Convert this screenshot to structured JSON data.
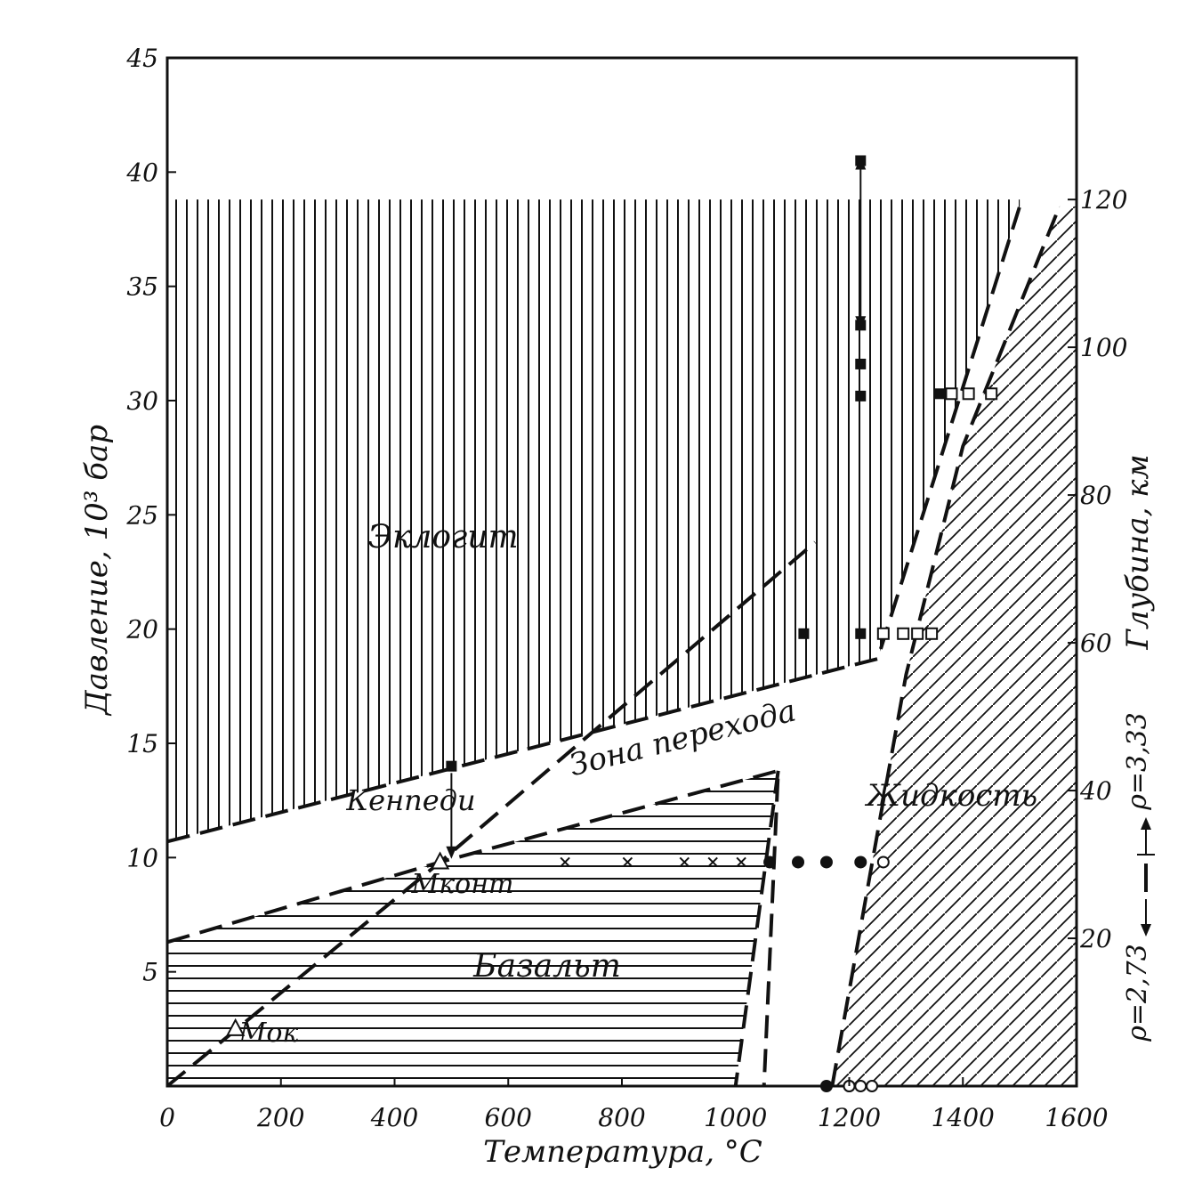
{
  "chart_data": {
    "type": "scatter",
    "title": "",
    "xlabel": "Температура, °С",
    "ylabel": "Давление, 10³ бар",
    "ylabel_right": "Глубина, км",
    "xlim": [
      0,
      1600
    ],
    "ylim": [
      0,
      45
    ],
    "xticks": [
      "0",
      "200",
      "400",
      "600",
      "800",
      "1000",
      "1200",
      "1400",
      "1600"
    ],
    "yticks": [
      "5",
      "10",
      "15",
      "20",
      "25",
      "30",
      "35",
      "40",
      "45"
    ],
    "right_ticks": [
      "20",
      "40",
      "60",
      "80",
      "100",
      "120"
    ],
    "density_note": {
      "lower": "ρ=2,73",
      "upper": "ρ=3,33"
    },
    "region_labels": {
      "eclogite": "Эклогит",
      "transition": "Зона перехода",
      "basalt": "Базальт",
      "liquid": "Жидкость",
      "kennedy": "Кенneди",
      "m_cont": "Мконт",
      "m_ok": "Мок"
    },
    "boundaries": [
      {
        "id": "eclogite-lower",
        "points": [
          [
            0,
            10.7
          ],
          [
            1250,
            18.7
          ],
          [
            1500,
            38.5
          ]
        ]
      },
      {
        "id": "transition-upper",
        "points": [
          [
            0,
            6.3
          ],
          [
            480,
            9.8
          ],
          [
            1075,
            13.8
          ],
          [
            1050,
            0
          ]
        ]
      },
      {
        "id": "basalt-transition-steep",
        "points": [
          [
            1075,
            13.8
          ],
          [
            1000,
            0
          ]
        ]
      },
      {
        "id": "liquidus",
        "points": [
          [
            1170,
            0
          ],
          [
            1260,
            12.5
          ],
          [
            1300,
            18
          ],
          [
            1400,
            28
          ],
          [
            1570,
            38.5
          ]
        ]
      },
      {
        "id": "geotherm",
        "points": [
          [
            0,
            0
          ],
          [
            480,
            9.8
          ],
          [
            1140,
            23.8
          ]
        ]
      }
    ],
    "series": [
      {
        "name": "■",
        "marker": "filled-square",
        "points": [
          [
            500,
            14
          ],
          [
            1120,
            19.8
          ],
          [
            1220,
            19.8
          ],
          [
            1220,
            30.2
          ],
          [
            1220,
            31.6
          ],
          [
            1220,
            33.3
          ],
          [
            1220,
            40.5
          ],
          [
            1360,
            30.3
          ]
        ]
      },
      {
        "name": "□",
        "marker": "open-square",
        "points": [
          [
            1260,
            19.8
          ],
          [
            1295,
            19.8
          ],
          [
            1320,
            19.8
          ],
          [
            1345,
            19.8
          ],
          [
            1380,
            30.3
          ],
          [
            1410,
            30.3
          ],
          [
            1450,
            30.3
          ]
        ]
      },
      {
        "name": "×",
        "marker": "cross",
        "points": [
          [
            700,
            9.8
          ],
          [
            810,
            9.8
          ],
          [
            910,
            9.8
          ],
          [
            960,
            9.8
          ],
          [
            1010,
            9.8
          ]
        ]
      },
      {
        "name": "●",
        "marker": "filled-circle",
        "points": [
          [
            1060,
            9.8
          ],
          [
            1110,
            9.8
          ],
          [
            1160,
            9.8
          ],
          [
            1220,
            9.8
          ],
          [
            1160,
            0
          ],
          [
            1200,
            0
          ]
        ]
      },
      {
        "name": "○",
        "marker": "open-circle",
        "points": [
          [
            1260,
            9.8
          ],
          [
            1200,
            0
          ],
          [
            1220,
            0
          ],
          [
            1240,
            0
          ]
        ]
      },
      {
        "name": "△",
        "marker": "open-triangle",
        "points": [
          [
            480,
            9.8
          ],
          [
            120,
            2.5
          ]
        ]
      }
    ],
    "arrows": [
      {
        "id": "kennedy-arrow",
        "from": [
          500,
          13.7
        ],
        "to": [
          500,
          10.1
        ]
      },
      {
        "id": "double-arrow",
        "from": [
          1220,
          40.5
        ],
        "to": [
          1220,
          33.3
        ]
      }
    ],
    "grid": false
  }
}
